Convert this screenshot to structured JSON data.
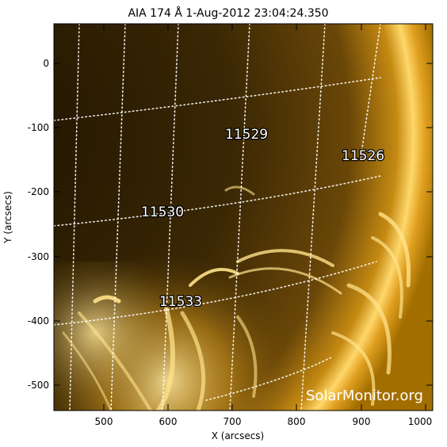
{
  "title": "AIA 174 Å   1-Aug-2012 23:04:24.350",
  "x_axis": {
    "label": "X (arcsecs)",
    "ticks": [
      "500",
      "600",
      "700",
      "800",
      "900",
      "1000"
    ]
  },
  "y_axis": {
    "label": "Y (arcsecs)",
    "ticks": [
      "0",
      "-100",
      "-200",
      "-300",
      "-400",
      "-500"
    ]
  },
  "active_regions": [
    {
      "label": "11529"
    },
    {
      "label": "11526"
    },
    {
      "label": "11530"
    },
    {
      "label": "11533"
    }
  ],
  "watermark": "SolarMonitor.org",
  "colors": {
    "disk_dark": "#2a1b00",
    "disk_mid": "#6b4a08",
    "limb_bright": "#ffd45a",
    "off_limb": "#b07800",
    "grid": "#ffffff"
  }
}
